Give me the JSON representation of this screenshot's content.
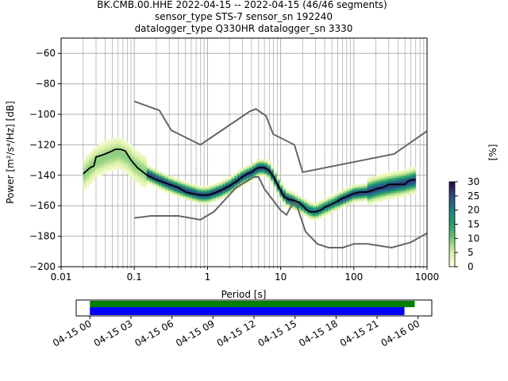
{
  "chart_data": {
    "type": "heatmap",
    "title_lines": [
      "BK.CMB.00.HHE   2022-04-15 -- 2022-04-15  (46/46 segments)",
      "sensor_type STS-7 sensor_sn 192240",
      "datalogger_type Q330HR datalogger_sn 3330"
    ],
    "xlabel": "Period [s]",
    "ylabel": "Power [m²/s⁴/Hz] [dB]",
    "xscale": "log",
    "xlim": [
      0.01,
      1000
    ],
    "ylim": [
      -200,
      -50
    ],
    "x_ticks": [
      {
        "value": 0.01,
        "label": "0.01"
      },
      {
        "value": 0.1,
        "label": "0.1"
      },
      {
        "value": 1,
        "label": "1"
      },
      {
        "value": 10,
        "label": "10"
      },
      {
        "value": 100,
        "label": "100"
      },
      {
        "value": 1000,
        "label": "1000"
      }
    ],
    "y_ticks": [
      -60,
      -80,
      -100,
      -120,
      -140,
      -160,
      -180,
      -200
    ],
    "grid": true,
    "colorbar": {
      "label": "[%]",
      "min": 0,
      "max": 30,
      "ticks": [
        0,
        5,
        10,
        15,
        20,
        25,
        30
      ]
    },
    "noise_models": {
      "nhnm": [
        [
          0.1,
          -91.5
        ],
        [
          0.22,
          -97.4
        ],
        [
          0.32,
          -110.5
        ],
        [
          0.8,
          -120
        ],
        [
          3.8,
          -98
        ],
        [
          4.6,
          -96.5
        ],
        [
          6.3,
          -101
        ],
        [
          7.9,
          -113
        ],
        [
          15.4,
          -120
        ],
        [
          20,
          -138
        ],
        [
          354.8,
          -126
        ],
        [
          1000,
          -111
        ]
      ],
      "nlnm": [
        [
          0.1,
          -168
        ],
        [
          0.17,
          -166.7
        ],
        [
          0.4,
          -166.7
        ],
        [
          0.8,
          -169.2
        ],
        [
          1.24,
          -163.7
        ],
        [
          2.4,
          -148.6
        ],
        [
          4.3,
          -141.1
        ],
        [
          5,
          -141.1
        ],
        [
          6,
          -149
        ],
        [
          10,
          -163
        ],
        [
          12,
          -166
        ],
        [
          15.6,
          -156
        ],
        [
          21.9,
          -177
        ],
        [
          31.6,
          -185
        ],
        [
          45,
          -187.5
        ],
        [
          70,
          -187.5
        ],
        [
          101,
          -185
        ],
        [
          154,
          -185
        ],
        [
          328,
          -187.5
        ],
        [
          600,
          -184
        ],
        [
          1000,
          -178
        ]
      ]
    },
    "mode_line": [
      [
        0.02,
        -139
      ],
      [
        0.025,
        -135
      ],
      [
        0.028,
        -134
      ],
      [
        0.03,
        -128
      ],
      [
        0.035,
        -127
      ],
      [
        0.04,
        -126
      ],
      [
        0.045,
        -125
      ],
      [
        0.05,
        -124
      ],
      [
        0.055,
        -123
      ],
      [
        0.065,
        -123
      ],
      [
        0.075,
        -124
      ],
      [
        0.09,
        -130
      ],
      [
        0.11,
        -135
      ],
      [
        0.15,
        -140
      ],
      [
        0.2,
        -143
      ],
      [
        0.3,
        -146
      ],
      [
        0.4,
        -148
      ],
      [
        0.5,
        -151
      ],
      [
        0.6,
        -152
      ],
      [
        0.8,
        -153
      ],
      [
        1,
        -153
      ],
      [
        1.2,
        -152
      ],
      [
        1.5,
        -150
      ],
      [
        2,
        -147
      ],
      [
        2.5,
        -144
      ],
      [
        3,
        -141
      ],
      [
        3.5,
        -139
      ],
      [
        4,
        -138
      ],
      [
        4.5,
        -136
      ],
      [
        5,
        -135
      ],
      [
        5.5,
        -135
      ],
      [
        6,
        -135
      ],
      [
        6.5,
        -136
      ],
      [
        7,
        -137
      ],
      [
        8,
        -141
      ],
      [
        9,
        -146
      ],
      [
        10,
        -150
      ],
      [
        11,
        -154
      ],
      [
        12,
        -155
      ],
      [
        13,
        -156
      ],
      [
        14,
        -156
      ],
      [
        16,
        -157
      ],
      [
        18,
        -158
      ],
      [
        20,
        -160
      ],
      [
        22,
        -162
      ],
      [
        25,
        -164
      ],
      [
        28,
        -164
      ],
      [
        30,
        -164
      ],
      [
        35,
        -163
      ],
      [
        40,
        -161
      ],
      [
        50,
        -159
      ],
      [
        60,
        -157
      ],
      [
        70,
        -155
      ],
      [
        80,
        -154
      ],
      [
        100,
        -152
      ],
      [
        120,
        -151
      ],
      [
        150,
        -151
      ],
      [
        180,
        -150
      ],
      [
        200,
        -149
      ],
      [
        250,
        -148
      ],
      [
        300,
        -146
      ],
      [
        400,
        -146
      ],
      [
        500,
        -146
      ],
      [
        550,
        -144
      ],
      [
        600,
        -143
      ],
      [
        700,
        -143
      ]
    ],
    "spread_centers": [
      [
        0.02,
        -140
      ],
      [
        0.03,
        -131
      ],
      [
        0.04,
        -128
      ],
      [
        0.06,
        -125
      ],
      [
        0.08,
        -128
      ],
      [
        0.1,
        -133
      ],
      [
        0.15,
        -139
      ],
      [
        0.2,
        -142
      ],
      [
        0.3,
        -146
      ],
      [
        0.5,
        -150
      ],
      [
        0.8,
        -153
      ],
      [
        1,
        -153
      ],
      [
        1.5,
        -150
      ],
      [
        2,
        -147
      ],
      [
        3,
        -141
      ],
      [
        4,
        -138
      ],
      [
        5,
        -135
      ],
      [
        6,
        -135
      ],
      [
        7,
        -137
      ],
      [
        8,
        -141
      ],
      [
        10,
        -150
      ],
      [
        12,
        -155
      ],
      [
        15,
        -157
      ],
      [
        20,
        -160
      ],
      [
        25,
        -163
      ],
      [
        30,
        -164
      ],
      [
        40,
        -161
      ],
      [
        60,
        -157
      ],
      [
        100,
        -152
      ],
      [
        150,
        -151
      ],
      [
        200,
        -149
      ],
      [
        300,
        -147
      ],
      [
        500,
        -145
      ],
      [
        700,
        -143
      ]
    ],
    "timeline": {
      "ticks": [
        "04-15 00",
        "04-15 03",
        "04-15 06",
        "04-15 09",
        "04-15 12",
        "04-15 15",
        "04-15 18",
        "04-15 21",
        "04-16 00"
      ],
      "range_hours": [
        -1,
        25
      ],
      "data_coverage_hours": [
        0,
        23.0
      ],
      "segments_used_hours": [
        0,
        23.75
      ],
      "coverage_colors": {
        "data": "#0000ff",
        "segments": "#008000"
      }
    }
  },
  "colors": {
    "model_line": "#666666",
    "mode_line": "#000000",
    "grid": "#b0b0b0"
  }
}
